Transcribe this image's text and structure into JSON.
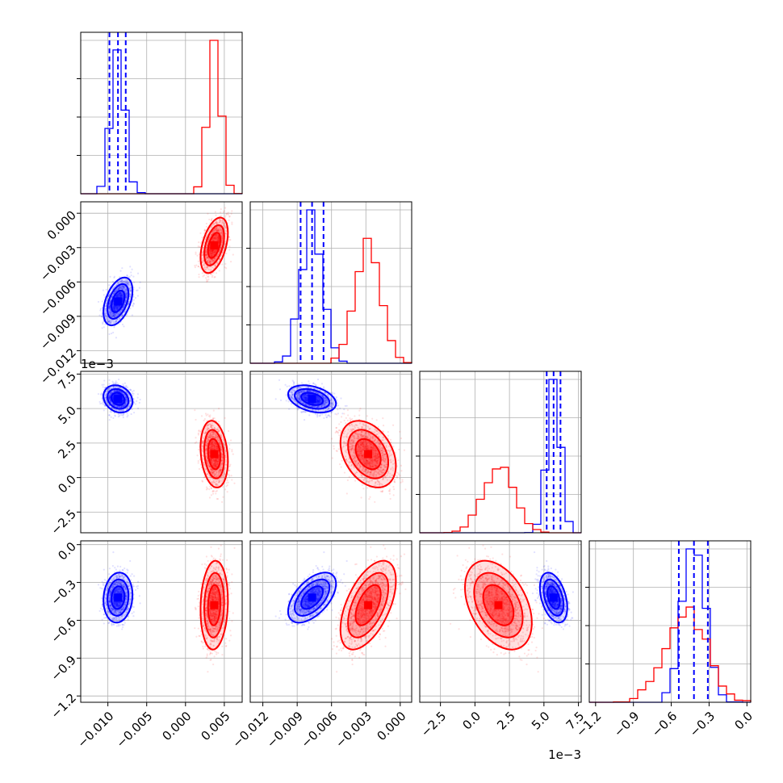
{
  "chart_data": {
    "type": "corner",
    "grid": true,
    "series": [
      {
        "color": "#0000ff",
        "means": [
          -0.0087,
          -0.0077,
          0.0057,
          -0.42
        ],
        "sds": [
          0.00085,
          0.00095,
          0.00045,
          0.09
        ]
      },
      {
        "color": "#ff0000",
        "means": [
          0.0037,
          -0.0028,
          0.0017,
          -0.48
        ],
        "sds": [
          0.0008,
          0.0011,
          0.0011,
          0.16
        ]
      }
    ],
    "quantiles": [
      [
        -0.0098,
        -0.0087,
        -0.0077
      ],
      [
        -0.0087,
        -0.0077,
        -0.0067
      ],
      [
        0.0052,
        0.0057,
        0.0062
      ],
      [
        -0.54,
        -0.42,
        -0.31
      ]
    ],
    "params": [
      {
        "range": [
          -0.0135,
          0.0073
        ],
        "ticks": [
          -0.01,
          -0.005,
          0.0,
          0.005
        ],
        "tick_labels": [
          "−0.010",
          "−0.005",
          "0.000",
          "0.005"
        ]
      },
      {
        "range": [
          -0.0131,
          0.001
        ],
        "ticks": [
          -0.012,
          -0.009,
          -0.006,
          -0.003,
          0.0
        ],
        "tick_labels": [
          "−0.012",
          "−0.009",
          "−0.006",
          "−0.003",
          "0.000"
        ]
      },
      {
        "range": [
          -4.0,
          7.7
        ],
        "ticks": [
          -2.5,
          0.0,
          2.5,
          5.0,
          7.5
        ],
        "tick_labels": [
          "−2.5",
          "0.0",
          "2.5",
          "5.0",
          "7.5"
        ],
        "offset": "1e−3"
      },
      {
        "range": [
          -1.25,
          0.03
        ],
        "ticks": [
          -1.2,
          -0.9,
          -0.6,
          -0.3,
          0.0
        ],
        "tick_labels": [
          "−1.2",
          "−0.9",
          "−0.6",
          "−0.3",
          "0.0"
        ]
      }
    ],
    "hist_density_ticks": 4
  }
}
